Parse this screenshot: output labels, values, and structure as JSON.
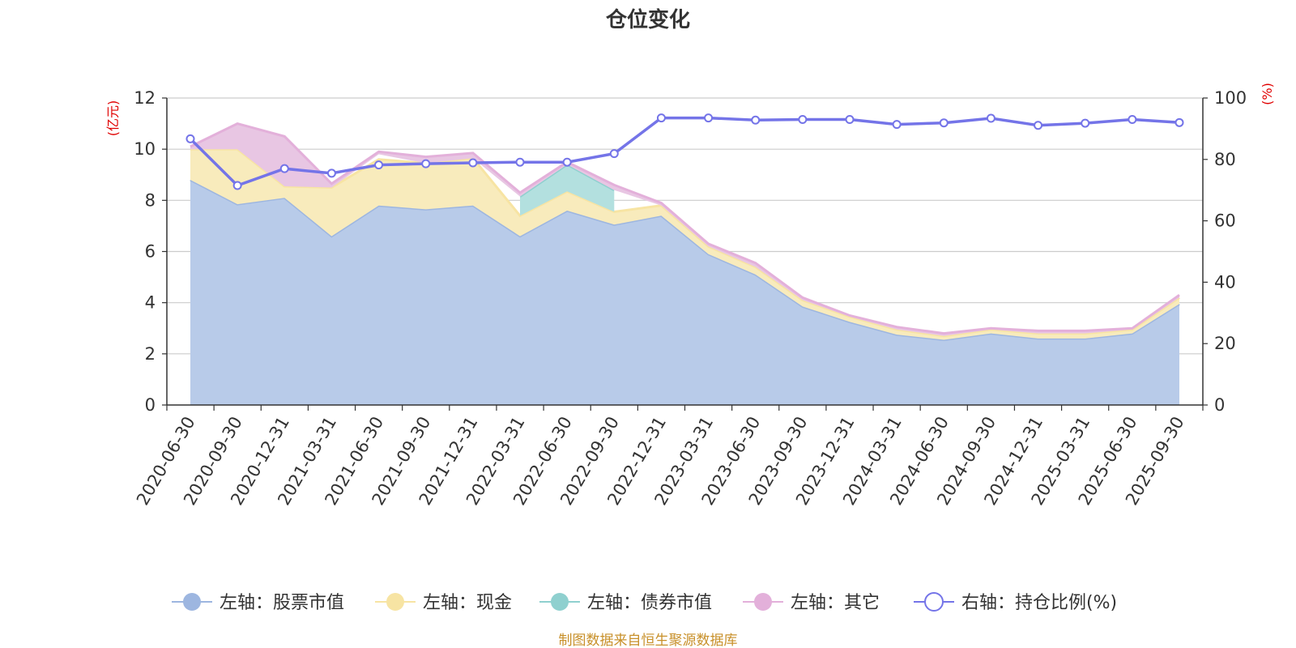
{
  "chart_data": {
    "type": "area",
    "title": "仓位变化",
    "left_axis_unit": "(亿元)",
    "right_axis_unit": "(%)",
    "ylim_left": [
      0,
      12
    ],
    "yticks_left": [
      0,
      2,
      4,
      6,
      8,
      10,
      12
    ],
    "ylim_right": [
      0,
      100
    ],
    "yticks_right": [
      0,
      20,
      40,
      60,
      80,
      100
    ],
    "categories": [
      "2020-06-30",
      "2020-09-30",
      "2020-12-31",
      "2021-03-31",
      "2021-06-30",
      "2021-09-30",
      "2021-12-31",
      "2022-03-31",
      "2022-06-30",
      "2022-09-30",
      "2022-12-31",
      "2023-03-31",
      "2023-06-30",
      "2023-09-30",
      "2023-12-31",
      "2024-03-31",
      "2024-06-30",
      "2024-09-30",
      "2024-12-31",
      "2025-03-31",
      "2025-06-30",
      "2025-09-30"
    ],
    "series": [
      {
        "name": "左轴：股票市值",
        "axis": "left",
        "stacked": true,
        "color": "#9db6e0",
        "fill": "#b8cbe9",
        "values": [
          8.8,
          7.85,
          8.1,
          6.6,
          7.8,
          7.65,
          7.8,
          6.6,
          7.6,
          7.05,
          7.4,
          5.9,
          5.1,
          3.85,
          3.25,
          2.75,
          2.55,
          2.8,
          2.6,
          2.6,
          2.8,
          3.95
        ]
      },
      {
        "name": "左轴：现金",
        "axis": "left",
        "stacked": true,
        "color": "#f7e4a3",
        "fill": "#f8ebbc",
        "values": [
          1.2,
          2.15,
          0.45,
          1.9,
          1.8,
          1.8,
          1.85,
          0.8,
          0.75,
          0.5,
          0.4,
          0.3,
          0.3,
          0.25,
          0.2,
          0.2,
          0.15,
          0.15,
          0.2,
          0.2,
          0.15,
          0.25
        ]
      },
      {
        "name": "左轴：债券市值",
        "axis": "left",
        "stacked": true,
        "color": "#8fd0cf",
        "fill": "#b3e0df",
        "values": [
          0,
          0,
          0,
          0,
          0.2,
          0,
          0,
          0.75,
          1.05,
          0.85,
          0,
          0,
          0,
          0,
          0,
          0,
          0,
          0,
          0,
          0,
          0,
          0
        ]
      },
      {
        "name": "左轴：其它",
        "axis": "left",
        "stacked": true,
        "color": "#e3b0da",
        "fill": "#e8c6e3",
        "values": [
          0.1,
          1.0,
          1.95,
          0.15,
          0.1,
          0.25,
          0.2,
          0.15,
          0.1,
          0.2,
          0.1,
          0.1,
          0.15,
          0.1,
          0.05,
          0.1,
          0.1,
          0.05,
          0.1,
          0.1,
          0.05,
          0.1
        ]
      },
      {
        "name": "右轴：持仓比例(%)",
        "axis": "right",
        "type": "line",
        "color": "#7474e8",
        "values": [
          86.7,
          71.5,
          77.0,
          75.5,
          78.2,
          78.6,
          78.9,
          79.1,
          79.1,
          81.9,
          93.5,
          93.5,
          92.8,
          93.0,
          93.0,
          91.4,
          91.9,
          93.4,
          91.1,
          91.8,
          93.0,
          92.0
        ]
      }
    ],
    "legend": [
      "左轴：股票市值",
      "左轴：现金",
      "左轴：债券市值",
      "左轴：其它",
      "右轴：持仓比例(%)"
    ],
    "legend_position": "bottom",
    "source": "制图数据来自恒生聚源数据库"
  }
}
